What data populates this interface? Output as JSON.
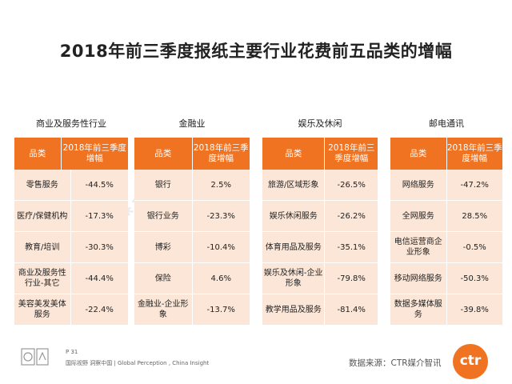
{
  "title": "2018年前三季度报纸主要行业花费前五品类的增幅",
  "columns": {
    "category": "品类",
    "growth": "2018年前三季度增幅"
  },
  "panels": [
    {
      "name": "商业及服务性行业",
      "rows": [
        {
          "category": "零售服务",
          "growth": "-44.5%"
        },
        {
          "category": "医疗/保健机构",
          "growth": "-17.3%"
        },
        {
          "category": "教育/培训",
          "growth": "-30.3%"
        },
        {
          "category": "商业及服务性行业-其它",
          "growth": "-44.4%"
        },
        {
          "category": "美容美发美体服务",
          "growth": "-22.4%"
        }
      ]
    },
    {
      "name": "金融业",
      "rows": [
        {
          "category": "银行",
          "growth": "2.5%"
        },
        {
          "category": "银行业务",
          "growth": "-23.3%"
        },
        {
          "category": "博彩",
          "growth": "-10.4%"
        },
        {
          "category": "保险",
          "growth": "4.6%"
        },
        {
          "category": "金融业-企业形象",
          "growth": "-13.7%"
        }
      ]
    },
    {
      "name": "娱乐及休闲",
      "rows": [
        {
          "category": "旅游/区域形象",
          "growth": "-26.5%"
        },
        {
          "category": "娱乐休闲服务",
          "growth": "-26.2%"
        },
        {
          "category": "体育用品及服务",
          "growth": "-35.1%"
        },
        {
          "category": "娱乐及休闲-企业形象",
          "growth": "-79.8%"
        },
        {
          "category": "教学用品及服务",
          "growth": "-81.4%"
        }
      ]
    },
    {
      "name": "邮电通讯",
      "rows": [
        {
          "category": "网络服务",
          "growth": "-47.2%"
        },
        {
          "category": "全网服务",
          "growth": "28.5%"
        },
        {
          "category": "电信运营商企业形象",
          "growth": "-0.5%"
        },
        {
          "category": "移动网络服务",
          "growth": "-50.3%"
        },
        {
          "category": "数据多媒体服务",
          "growth": "-39.8%"
        }
      ]
    }
  ],
  "watermark": "CTR媒介智讯",
  "footer": {
    "page": "P 31",
    "tagline": "国际视野 洞察中国 | Global Perception , China Insight",
    "source": "数据来源：CTR媒介智讯",
    "logo": "ctr"
  },
  "colors": {
    "header": "#f07322",
    "row": "#fbe6d7"
  }
}
